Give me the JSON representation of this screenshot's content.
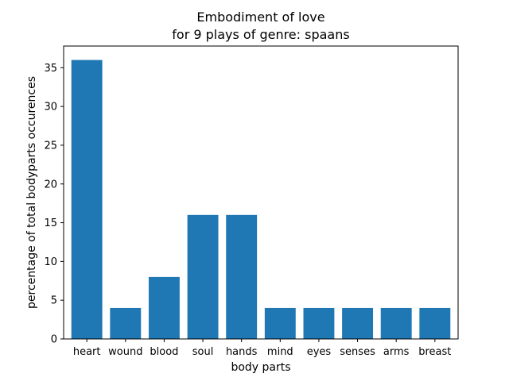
{
  "chart_data": {
    "type": "bar",
    "title_lines": [
      "Embodiment of love",
      "for 9 plays of genre: spaans"
    ],
    "xlabel": "body parts",
    "ylabel": "percentage of total bodyparts occurences",
    "categories": [
      "heart",
      "wound",
      "blood",
      "soul",
      "hands",
      "mind",
      "eyes",
      "senses",
      "arms",
      "breast"
    ],
    "values": [
      36,
      4,
      8,
      16,
      16,
      4,
      4,
      4,
      4,
      4
    ],
    "ylim": [
      0,
      37.8
    ],
    "yticks": [
      0,
      5,
      10,
      15,
      20,
      25,
      30,
      35
    ],
    "grid": false,
    "bar_color": "#1f77b4"
  }
}
